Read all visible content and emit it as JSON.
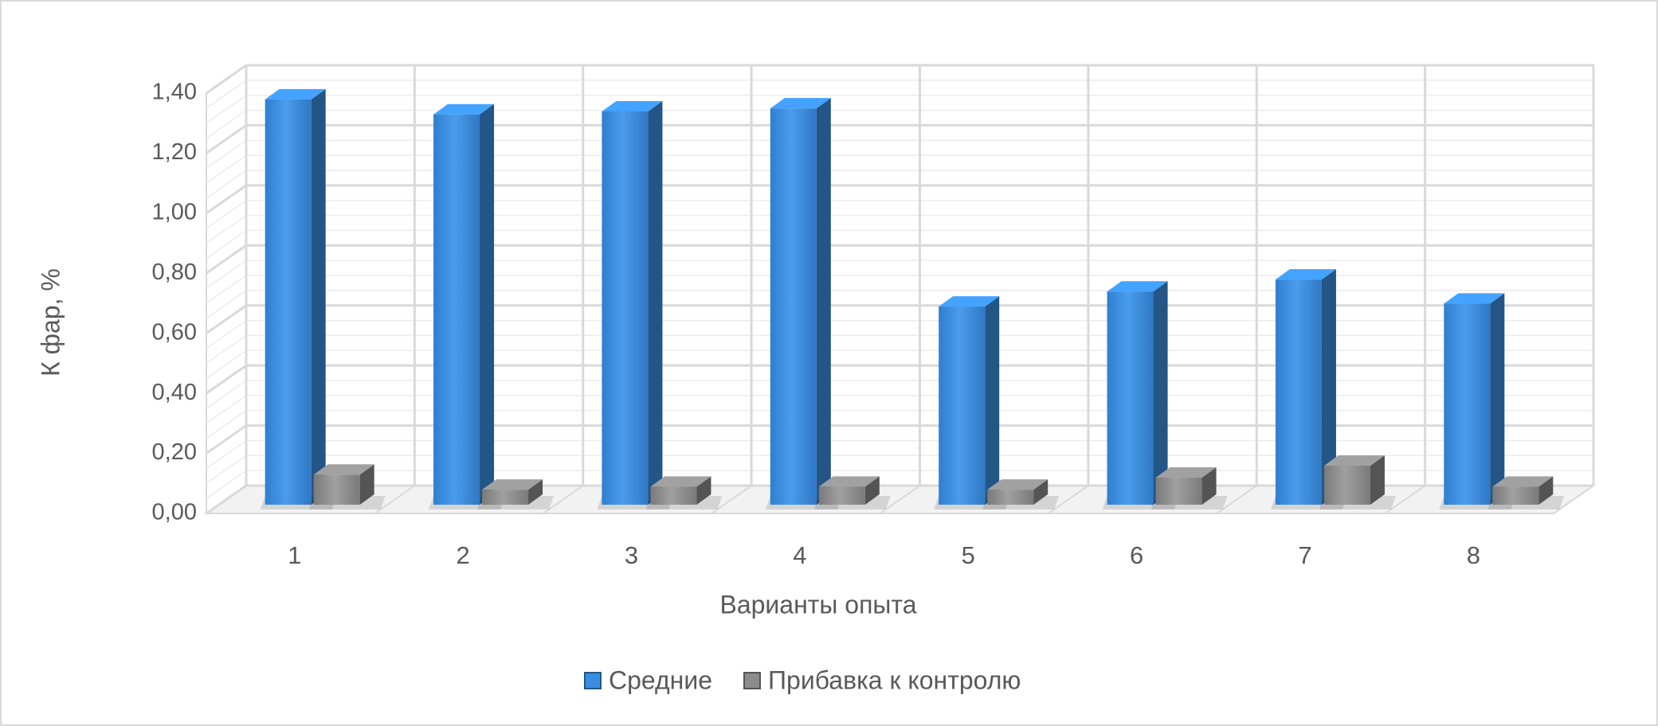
{
  "chart_data": {
    "type": "bar3d",
    "x_label": "Варианты опыта",
    "y_label": "К фар, %",
    "categories": [
      "1",
      "2",
      "3",
      "4",
      "5",
      "6",
      "7",
      "8"
    ],
    "series": [
      {
        "name": "Средние",
        "color": "#3a8ee0",
        "values": [
          1.35,
          1.3,
          1.31,
          1.32,
          0.66,
          0.71,
          0.75,
          0.67
        ]
      },
      {
        "name": "Прибавка к контролю",
        "color": "#8c8c8c",
        "values": [
          0.1,
          0.05,
          0.06,
          0.06,
          0.05,
          0.09,
          0.13,
          0.06
        ]
      }
    ],
    "ylim": [
      0,
      1.4
    ],
    "yticks": [
      {
        "value": 0,
        "label": "0,00"
      },
      {
        "value": 0.2,
        "label": "0,20"
      },
      {
        "value": 0.4,
        "label": "0,40"
      },
      {
        "value": 0.6,
        "label": "0,60"
      },
      {
        "value": 0.8,
        "label": "0,80"
      },
      {
        "value": 1.0,
        "label": "1,00"
      },
      {
        "value": 1.2,
        "label": "1,20"
      },
      {
        "value": 1.4,
        "label": "1,40"
      }
    ],
    "grid": true,
    "legend": "bottom"
  }
}
